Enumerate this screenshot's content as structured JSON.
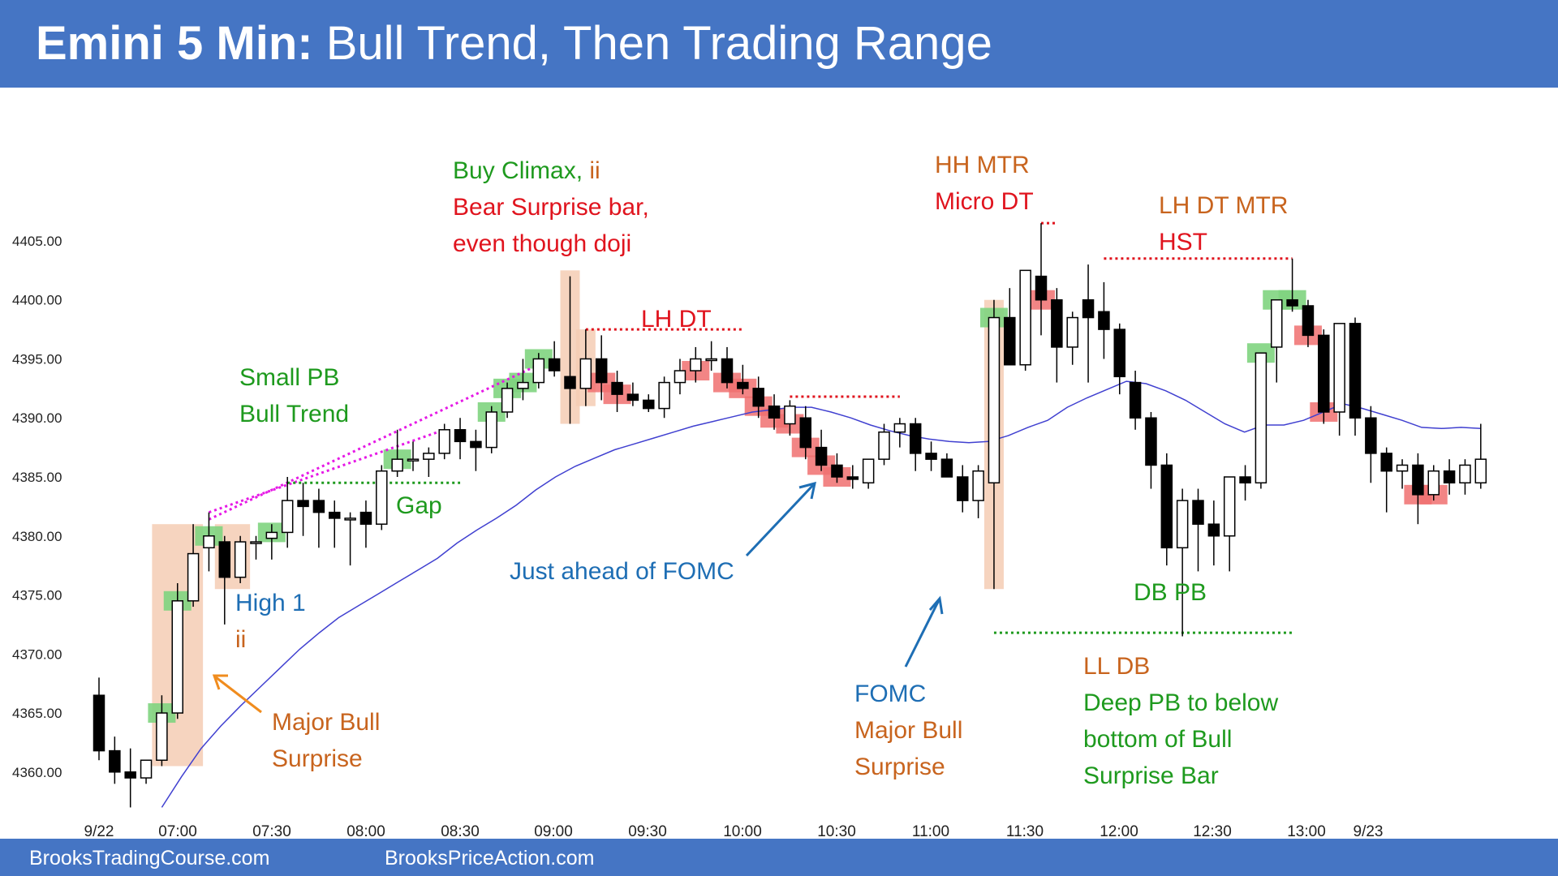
{
  "header": {
    "title_bold": "Emini 5 Min:",
    "title_rest": "Bull Trend, Then Trading Range"
  },
  "footer": {
    "left": "BrooksTradingCourse.com",
    "right": "BrooksPriceAction.com"
  },
  "colors": {
    "title_bg": "#4575c4",
    "bull_marker": "#7fd47f",
    "bear_marker": "#f07070",
    "highlight": "#f5cdb4",
    "ema": "#4040d0",
    "label_green": "#1e9a1e",
    "label_red": "#e0141e",
    "label_orange": "#c8641e",
    "label_blue": "#1e6eb4",
    "magenta": "#e619e6"
  },
  "chart_data": {
    "type": "candlestick",
    "title": "Emini 5 Min: Bull Trend, Then Trading Range",
    "ylim": [
      4356,
      4414
    ],
    "y_ticks": [
      "4360.00",
      "4365.00",
      "4370.00",
      "4375.00",
      "4380.00",
      "4385.00",
      "4390.00",
      "4395.00",
      "4400.00",
      "4405.00"
    ],
    "x_ticks": [
      "9/22",
      "07:00",
      "07:30",
      "08:00",
      "08:30",
      "09:00",
      "09:30",
      "10:00",
      "10:30",
      "11:00",
      "11:30",
      "12:00",
      "12:30",
      "13:00",
      "9/23"
    ],
    "candles": [
      {
        "o": 4366.5,
        "h": 4368,
        "l": 4361,
        "c": 4361.8
      },
      {
        "o": 4361.8,
        "h": 4363,
        "l": 4359,
        "c": 4360
      },
      {
        "o": 4360,
        "h": 4362,
        "l": 4357,
        "c": 4359.5
      },
      {
        "o": 4359.5,
        "h": 4361,
        "l": 4359,
        "c": 4361
      },
      {
        "o": 4361,
        "h": 4366.5,
        "l": 4360.5,
        "c": 4365
      },
      {
        "o": 4365,
        "h": 4376,
        "l": 4364.5,
        "c": 4374.5
      },
      {
        "o": 4374.5,
        "h": 4381,
        "l": 4374,
        "c": 4378.5
      },
      {
        "o": 4379,
        "h": 4382,
        "l": 4377,
        "c": 4380
      },
      {
        "o": 4379.5,
        "h": 4380,
        "l": 4372.5,
        "c": 4376.5
      },
      {
        "o": 4376.5,
        "h": 4380,
        "l": 4376,
        "c": 4379.5
      },
      {
        "o": 4379.5,
        "h": 4380,
        "l": 4378,
        "c": 4379.5
      },
      {
        "o": 4379.8,
        "h": 4381,
        "l": 4378,
        "c": 4380.3
      },
      {
        "o": 4380.3,
        "h": 4385,
        "l": 4379,
        "c": 4383
      },
      {
        "o": 4383,
        "h": 4384.5,
        "l": 4380,
        "c": 4382.5
      },
      {
        "o": 4383,
        "h": 4384,
        "l": 4379,
        "c": 4382
      },
      {
        "o": 4382,
        "h": 4383,
        "l": 4379,
        "c": 4381.5
      },
      {
        "o": 4381.5,
        "h": 4382,
        "l": 4377.5,
        "c": 4381.5
      },
      {
        "o": 4382,
        "h": 4383,
        "l": 4379,
        "c": 4381
      },
      {
        "o": 4381,
        "h": 4386,
        "l": 4380.5,
        "c": 4385.5
      },
      {
        "o": 4385.5,
        "h": 4389,
        "l": 4385,
        "c": 4386.5
      },
      {
        "o": 4386.5,
        "h": 4388,
        "l": 4385.5,
        "c": 4386.5
      },
      {
        "o": 4386.5,
        "h": 4387.5,
        "l": 4385,
        "c": 4387
      },
      {
        "o": 4387,
        "h": 4389.5,
        "l": 4386.5,
        "c": 4389
      },
      {
        "o": 4389,
        "h": 4390,
        "l": 4386.5,
        "c": 4388
      },
      {
        "o": 4388,
        "h": 4389,
        "l": 4385.5,
        "c": 4387.5
      },
      {
        "o": 4387.5,
        "h": 4391,
        "l": 4387,
        "c": 4390.5
      },
      {
        "o": 4390.5,
        "h": 4393,
        "l": 4390,
        "c": 4392.5
      },
      {
        "o": 4392.5,
        "h": 4395,
        "l": 4391.5,
        "c": 4393
      },
      {
        "o": 4393,
        "h": 4395.5,
        "l": 4392.5,
        "c": 4395
      },
      {
        "o": 4395,
        "h": 4396.5,
        "l": 4393.5,
        "c": 4394
      },
      {
        "o": 4393.5,
        "h": 4402,
        "l": 4389.5,
        "c": 4392.5
      },
      {
        "o": 4392.5,
        "h": 4397.5,
        "l": 4391,
        "c": 4395
      },
      {
        "o": 4395,
        "h": 4397,
        "l": 4391.5,
        "c": 4393
      },
      {
        "o": 4393,
        "h": 4394,
        "l": 4390.5,
        "c": 4392
      },
      {
        "o": 4392,
        "h": 4393,
        "l": 4391,
        "c": 4391.5
      },
      {
        "o": 4391.5,
        "h": 4392,
        "l": 4390.5,
        "c": 4390.8
      },
      {
        "o": 4390.8,
        "h": 4393.5,
        "l": 4390,
        "c": 4393
      },
      {
        "o": 4393,
        "h": 4395,
        "l": 4392,
        "c": 4394
      },
      {
        "o": 4394,
        "h": 4396,
        "l": 4393,
        "c": 4395
      },
      {
        "o": 4395,
        "h": 4396.5,
        "l": 4394,
        "c": 4395
      },
      {
        "o": 4395,
        "h": 4396,
        "l": 4392.5,
        "c": 4393
      },
      {
        "o": 4393,
        "h": 4394.5,
        "l": 4392,
        "c": 4392.5
      },
      {
        "o": 4392.5,
        "h": 4393.5,
        "l": 4390,
        "c": 4391
      },
      {
        "o": 4391,
        "h": 4392,
        "l": 4389,
        "c": 4390
      },
      {
        "o": 4389.5,
        "h": 4391.5,
        "l": 4388.5,
        "c": 4391
      },
      {
        "o": 4390,
        "h": 4391,
        "l": 4386.5,
        "c": 4387.5
      },
      {
        "o": 4387.5,
        "h": 4389,
        "l": 4385.5,
        "c": 4386
      },
      {
        "o": 4386,
        "h": 4387,
        "l": 4384.5,
        "c": 4385
      },
      {
        "o": 4385,
        "h": 4386,
        "l": 4384,
        "c": 4384.8
      },
      {
        "o": 4384.5,
        "h": 4386.5,
        "l": 4384,
        "c": 4386.5
      },
      {
        "o": 4386.5,
        "h": 4389.5,
        "l": 4386,
        "c": 4388.8
      },
      {
        "o": 4388.8,
        "h": 4390,
        "l": 4387.5,
        "c": 4389.5
      },
      {
        "o": 4389.5,
        "h": 4390,
        "l": 4385.5,
        "c": 4387
      },
      {
        "o": 4387,
        "h": 4388,
        "l": 4385.5,
        "c": 4386.5
      },
      {
        "o": 4386.5,
        "h": 4387,
        "l": 4385,
        "c": 4385
      },
      {
        "o": 4385,
        "h": 4386,
        "l": 4382,
        "c": 4383
      },
      {
        "o": 4383,
        "h": 4386,
        "l": 4381.5,
        "c": 4385.5
      },
      {
        "o": 4384.5,
        "h": 4400,
        "l": 4375.5,
        "c": 4398.5
      },
      {
        "o": 4398.5,
        "h": 4401,
        "l": 4394.5,
        "c": 4394.5
      },
      {
        "o": 4394.5,
        "h": 4402.5,
        "l": 4394,
        "c": 4402.5
      },
      {
        "o": 4402,
        "h": 4406.5,
        "l": 4397,
        "c": 4400
      },
      {
        "o": 4400,
        "h": 4401,
        "l": 4393,
        "c": 4396
      },
      {
        "o": 4396,
        "h": 4399,
        "l": 4394.5,
        "c": 4398.5
      },
      {
        "o": 4400,
        "h": 4403,
        "l": 4393,
        "c": 4398.5
      },
      {
        "o": 4399,
        "h": 4401.5,
        "l": 4395,
        "c": 4397.5
      },
      {
        "o": 4397.5,
        "h": 4398,
        "l": 4392,
        "c": 4393.5
      },
      {
        "o": 4393,
        "h": 4394,
        "l": 4389,
        "c": 4390
      },
      {
        "o": 4390,
        "h": 4390.5,
        "l": 4384,
        "c": 4386
      },
      {
        "o": 4386,
        "h": 4387,
        "l": 4377.5,
        "c": 4379
      },
      {
        "o": 4379,
        "h": 4384,
        "l": 4371.5,
        "c": 4383
      },
      {
        "o": 4383,
        "h": 4384,
        "l": 4377,
        "c": 4381
      },
      {
        "o": 4381,
        "h": 4383,
        "l": 4377.5,
        "c": 4380
      },
      {
        "o": 4380,
        "h": 4385,
        "l": 4377,
        "c": 4385
      },
      {
        "o": 4385,
        "h": 4386,
        "l": 4383,
        "c": 4384.5
      },
      {
        "o": 4384.5,
        "h": 4395.5,
        "l": 4384,
        "c": 4395.5
      },
      {
        "o": 4396,
        "h": 4400,
        "l": 4393,
        "c": 4400
      },
      {
        "o": 4400,
        "h": 4403.5,
        "l": 4399,
        "c": 4399.5
      },
      {
        "o": 4399.5,
        "h": 4400,
        "l": 4396,
        "c": 4397
      },
      {
        "o": 4397,
        "h": 4397.5,
        "l": 4389.5,
        "c": 4390.5
      },
      {
        "o": 4390.5,
        "h": 4398,
        "l": 4388.5,
        "c": 4398
      },
      {
        "o": 4398,
        "h": 4398.5,
        "l": 4388.5,
        "c": 4390
      },
      {
        "o": 4390,
        "h": 4391,
        "l": 4384.5,
        "c": 4387
      },
      {
        "o": 4387,
        "h": 4387.5,
        "l": 4382,
        "c": 4385.5
      },
      {
        "o": 4385.5,
        "h": 4386.5,
        "l": 4384,
        "c": 4386
      },
      {
        "o": 4386,
        "h": 4387,
        "l": 4381,
        "c": 4383.5
      },
      {
        "o": 4383.5,
        "h": 4386,
        "l": 4383,
        "c": 4385.5
      },
      {
        "o": 4385.5,
        "h": 4386.5,
        "l": 4383.5,
        "c": 4384.5
      },
      {
        "o": 4384.5,
        "h": 4386.5,
        "l": 4383.5,
        "c": 4386
      },
      {
        "o": 4384.5,
        "h": 4389.5,
        "l": 4384,
        "c": 4386.5
      }
    ],
    "ema": [
      4357,
      4359.6,
      4362,
      4363.9,
      4365.6,
      4367.2,
      4368.8,
      4370.4,
      4371.8,
      4373.1,
      4374.1,
      4375.1,
      4376.1,
      4377.1,
      4378.1,
      4379.4,
      4380.5,
      4381.5,
      4382.6,
      4383.9,
      4385,
      4385.9,
      4386.6,
      4387.3,
      4387.8,
      4388.3,
      4388.8,
      4389.3,
      4389.7,
      4390.1,
      4390.5,
      4390.7,
      4390.9,
      4390.9,
      4390.5,
      4390,
      4389.4,
      4388.9,
      4388.5,
      4388.2,
      4388,
      4387.9,
      4388,
      4388.5,
      4389.2,
      4389.8,
      4390.9,
      4391.7,
      4392.4,
      4393.1,
      4392.9,
      4392.3,
      4391.5,
      4390.5,
      4389.5,
      4388.8,
      4389.4,
      4389.4,
      4389.8,
      4390.5,
      4391.2,
      4390.8,
      4390.3,
      4389.8,
      4389.2,
      4389.1,
      4389.2,
      4389.1
    ],
    "ema_start_index": 4,
    "bull_markers": [
      4,
      5,
      7,
      11,
      19,
      25,
      26,
      27,
      28,
      57,
      74,
      75,
      76
    ],
    "bear_markers": [
      32,
      33,
      38,
      40,
      41,
      42,
      43,
      44,
      45,
      46,
      47,
      60,
      77,
      78,
      84,
      85
    ],
    "highlights": [
      {
        "from": 4,
        "to": 6,
        "low": 4360.5,
        "high": 4381
      },
      {
        "from": 8,
        "to": 9,
        "low": 4375.5,
        "high": 4381
      },
      {
        "from": 30,
        "to": 30,
        "low": 4389.5,
        "high": 4402.5
      },
      {
        "from": 31,
        "to": 31,
        "low": 4391,
        "high": 4397.5
      },
      {
        "from": 57,
        "to": 57,
        "low": 4375.5,
        "high": 4400
      }
    ],
    "lines": [
      {
        "style": "dotted",
        "color": "magenta",
        "from_bar": 7,
        "from_price": 4382,
        "to_bar": 22,
        "to_price": 4389
      },
      {
        "style": "dotted",
        "color": "magenta",
        "from_bar": 7,
        "from_price": 4381.4,
        "to_bar": 28,
        "to_price": 4394.5
      },
      {
        "style": "dotted",
        "color": "green",
        "from_bar": 12,
        "from_price": 4384.5,
        "to_bar": 23,
        "to_price": 4384.5
      },
      {
        "style": "dotted",
        "color": "red",
        "from_bar": 31,
        "from_price": 4397.5,
        "to_bar": 41,
        "to_price": 4397.5
      },
      {
        "style": "dotted",
        "color": "red",
        "from_bar": 44,
        "from_price": 4391.8,
        "to_bar": 51,
        "to_price": 4391.8
      },
      {
        "style": "dotted",
        "color": "red",
        "from_bar": 60,
        "from_price": 4406.5,
        "to_bar": 61,
        "to_price": 4406.5
      },
      {
        "style": "dotted",
        "color": "red",
        "from_bar": 64,
        "from_price": 4403.5,
        "to_bar": 76,
        "to_price": 4403.5
      },
      {
        "style": "dotted",
        "color": "green",
        "from_bar": 57,
        "from_price": 4371.8,
        "to_bar": 76,
        "to_price": 4371.8
      }
    ],
    "annotations": [
      {
        "lines": [
          "Small PB",
          "Bull Trend"
        ],
        "color": "label_green"
      },
      {
        "lines": [
          "Gap"
        ],
        "color": "label_green"
      },
      {
        "lines": [
          "High 1"
        ],
        "color": "label_blue"
      },
      {
        "lines": [
          "ii"
        ],
        "color": "label_orange"
      },
      {
        "lines": [
          "Major Bull",
          "Surprise"
        ],
        "color": "label_orange"
      },
      {
        "lines": [
          "Buy Climax, ",
          "Bear Surprise bar,",
          "even though doji"
        ],
        "color": "label_red",
        "suffix": "ii"
      },
      {
        "lines": [
          "LH DT"
        ],
        "color": "label_red"
      },
      {
        "lines": [
          "Just ahead of FOMC"
        ],
        "color": "label_blue"
      },
      {
        "lines": [
          "HH MTR"
        ],
        "color": "label_orange"
      },
      {
        "lines": [
          "Micro DT"
        ],
        "color": "label_red"
      },
      {
        "lines": [
          "LH DT MTR"
        ],
        "color": "label_orange"
      },
      {
        "lines": [
          "HST"
        ],
        "color": "label_red"
      },
      {
        "lines": [
          "DB PB"
        ],
        "color": "label_green"
      },
      {
        "lines": [
          "FOMC"
        ],
        "color": "label_blue"
      },
      {
        "lines": [
          "Major Bull",
          "Surprise"
        ],
        "color": "label_orange"
      },
      {
        "lines": [
          "LL DB"
        ],
        "color": "label_orange"
      },
      {
        "lines": [
          "Deep PB to below",
          "bottom of Bull",
          "Surprise  Bar"
        ],
        "color": "label_green"
      }
    ]
  }
}
